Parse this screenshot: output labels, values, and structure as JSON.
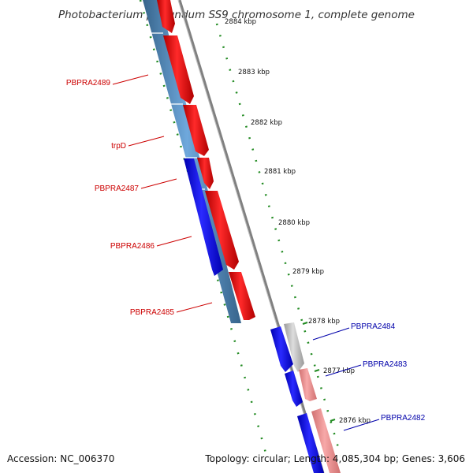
{
  "header": {
    "title": "Photobacterium profundum SS9 chromosome 1, complete genome"
  },
  "footer": {
    "accession": "Accession: NC_006370",
    "summary": "Topology: circular; Length: 4,085,304 bp; Genes: 3,606"
  },
  "scale": {
    "ticks": [
      "2884 kbp",
      "2883 kbp",
      "2882 kbp",
      "2881 kbp",
      "2880 kbp",
      "2879 kbp",
      "2878 kbp",
      "2877 kbp",
      "2876 kbp"
    ]
  },
  "genes": {
    "labels": [
      "PBPRA2489",
      "trpD",
      "PBPRA2487",
      "PBPRA2486",
      "PBPRA2485",
      "PBPRA2484",
      "PBPRA2483",
      "PBPRA2482"
    ]
  },
  "colors": {
    "forward_strand": "#ff0000",
    "reverse_strand": "#0000ff",
    "label_forward": "#cc0000",
    "label_reverse": "#0000aa",
    "feature_track": "#4682b4",
    "tick": "#228b22",
    "backbone": "#808080"
  }
}
